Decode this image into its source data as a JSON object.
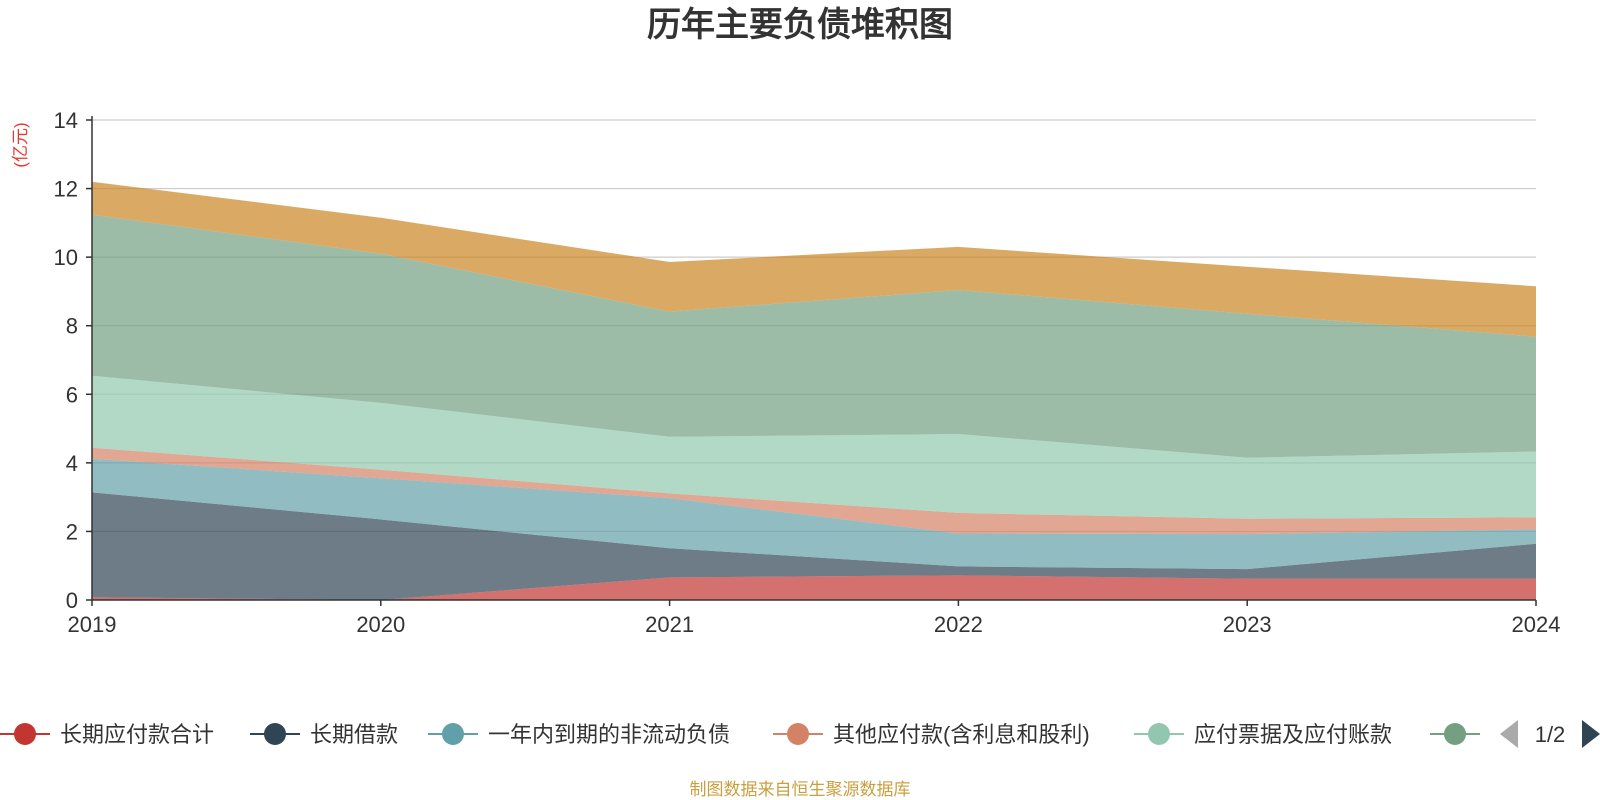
{
  "chart_data": {
    "type": "area",
    "stacked": true,
    "title": "历年主要负债堆积图",
    "y_unit": "(亿元)",
    "categories": [
      "2019",
      "2020",
      "2021",
      "2022",
      "2023",
      "2024"
    ],
    "ylim": [
      0,
      14
    ],
    "yticks": [
      0,
      2,
      4,
      6,
      8,
      10,
      12,
      14
    ],
    "grid": true,
    "series": [
      {
        "name": "长期应付款合计",
        "color": "#c23531",
        "values": [
          0.08,
          0.0,
          0.66,
          0.72,
          0.62,
          0.62
        ]
      },
      {
        "name": "长期借款",
        "color": "#2f4554",
        "values": [
          3.06,
          2.35,
          0.85,
          0.26,
          0.28,
          1.02
        ]
      },
      {
        "name": "一年内到期的非流动负债",
        "color": "#61a0a8",
        "values": [
          0.98,
          1.2,
          1.46,
          0.96,
          1.02,
          0.42
        ]
      },
      {
        "name": "其他应付款(含利息和股利)",
        "color": "#d48265",
        "values": [
          0.32,
          0.25,
          0.14,
          0.6,
          0.45,
          0.35
        ]
      },
      {
        "name": "应付票据及应付账款",
        "color": "#91c7ae",
        "values": [
          2.1,
          1.95,
          1.65,
          2.3,
          1.78,
          1.92
        ]
      },
      {
        "name": "",
        "color": "#749f83",
        "values": [
          4.7,
          4.35,
          3.65,
          4.2,
          4.2,
          3.35
        ]
      },
      {
        "name": "",
        "color": "#ca8622",
        "values": [
          0.96,
          1.05,
          1.45,
          1.26,
          1.37,
          1.47
        ]
      }
    ],
    "legend": {
      "position": "bottom",
      "visible_count": 6,
      "page": "1/2"
    },
    "source": "制图数据来自恒生聚源数据库"
  }
}
